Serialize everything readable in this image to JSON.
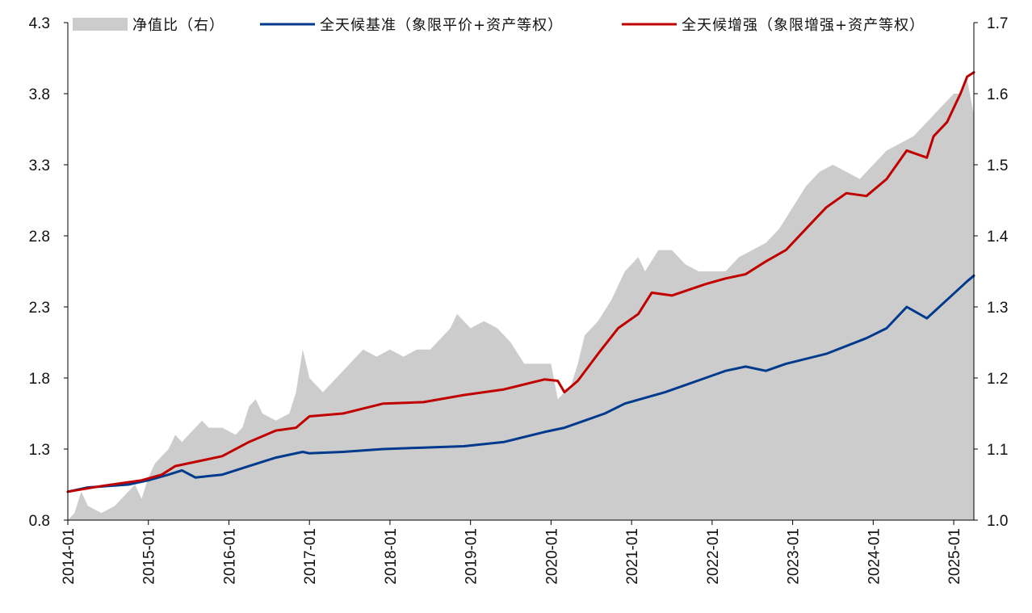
{
  "chart_data": {
    "type": "line",
    "x_axis": {
      "type": "date",
      "range": [
        "2014-01",
        "2025-04"
      ],
      "tick_labels": [
        "2014-01",
        "2015-01",
        "2016-01",
        "2017-01",
        "2018-01",
        "2019-01",
        "2020-01",
        "2021-01",
        "2022-01",
        "2023-01",
        "2024-01",
        "2025-01"
      ],
      "label_rotation": "vertical"
    },
    "y_axis_left": {
      "range": [
        0.8,
        4.3
      ],
      "ticks": [
        0.8,
        1.3,
        1.8,
        2.3,
        2.8,
        3.3,
        3.8,
        4.3
      ],
      "tick_labels": [
        "0.8",
        "1.3",
        "1.8",
        "2.3",
        "2.8",
        "3.3",
        "3.8",
        "4.3"
      ]
    },
    "y_axis_right": {
      "range": [
        1.0,
        1.7
      ],
      "ticks": [
        1.0,
        1.1,
        1.2,
        1.3,
        1.4,
        1.5,
        1.6,
        1.7
      ],
      "tick_labels": [
        "1.0",
        "1.1",
        "1.2",
        "1.3",
        "1.4",
        "1.5",
        "1.6",
        "1.7"
      ]
    },
    "grid": false,
    "legend_placement": "top",
    "series": [
      {
        "name": "净值比（右）",
        "type": "area",
        "axis": "right",
        "color": "#cccccc",
        "points": [
          [
            "2014-01",
            1.0
          ],
          [
            "2014-02",
            1.01
          ],
          [
            "2014-03",
            1.04
          ],
          [
            "2014-04",
            1.02
          ],
          [
            "2014-06",
            1.01
          ],
          [
            "2014-08",
            1.02
          ],
          [
            "2014-10",
            1.04
          ],
          [
            "2014-11",
            1.05
          ],
          [
            "2014-12",
            1.03
          ],
          [
            "2015-01",
            1.06
          ],
          [
            "2015-02",
            1.08
          ],
          [
            "2015-03",
            1.09
          ],
          [
            "2015-04",
            1.1
          ],
          [
            "2015-05",
            1.12
          ],
          [
            "2015-06",
            1.11
          ],
          [
            "2015-07",
            1.12
          ],
          [
            "2015-08",
            1.13
          ],
          [
            "2015-09",
            1.14
          ],
          [
            "2015-10",
            1.13
          ],
          [
            "2015-12",
            1.13
          ],
          [
            "2016-02",
            1.12
          ],
          [
            "2016-03",
            1.13
          ],
          [
            "2016-04",
            1.16
          ],
          [
            "2016-05",
            1.17
          ],
          [
            "2016-06",
            1.15
          ],
          [
            "2016-08",
            1.14
          ],
          [
            "2016-10",
            1.15
          ],
          [
            "2016-11",
            1.18
          ],
          [
            "2016-12",
            1.24
          ],
          [
            "2017-01",
            1.2
          ],
          [
            "2017-03",
            1.18
          ],
          [
            "2017-05",
            1.2
          ],
          [
            "2017-07",
            1.22
          ],
          [
            "2017-09",
            1.24
          ],
          [
            "2017-11",
            1.23
          ],
          [
            "2018-01",
            1.24
          ],
          [
            "2018-03",
            1.23
          ],
          [
            "2018-05",
            1.24
          ],
          [
            "2018-07",
            1.24
          ],
          [
            "2018-08",
            1.25
          ],
          [
            "2018-10",
            1.27
          ],
          [
            "2018-11",
            1.29
          ],
          [
            "2018-12",
            1.28
          ],
          [
            "2019-01",
            1.27
          ],
          [
            "2019-03",
            1.28
          ],
          [
            "2019-05",
            1.27
          ],
          [
            "2019-07",
            1.25
          ],
          [
            "2019-09",
            1.22
          ],
          [
            "2019-11",
            1.22
          ],
          [
            "2020-01",
            1.22
          ],
          [
            "2020-02",
            1.17
          ],
          [
            "2020-04",
            1.19
          ],
          [
            "2020-05",
            1.22
          ],
          [
            "2020-06",
            1.26
          ],
          [
            "2020-08",
            1.28
          ],
          [
            "2020-10",
            1.31
          ],
          [
            "2020-12",
            1.35
          ],
          [
            "2021-02",
            1.37
          ],
          [
            "2021-03",
            1.35
          ],
          [
            "2021-05",
            1.38
          ],
          [
            "2021-07",
            1.38
          ],
          [
            "2021-09",
            1.36
          ],
          [
            "2021-11",
            1.35
          ],
          [
            "2022-01",
            1.35
          ],
          [
            "2022-03",
            1.35
          ],
          [
            "2022-05",
            1.37
          ],
          [
            "2022-07",
            1.38
          ],
          [
            "2022-09",
            1.39
          ],
          [
            "2022-11",
            1.41
          ],
          [
            "2023-01",
            1.44
          ],
          [
            "2023-03",
            1.47
          ],
          [
            "2023-05",
            1.49
          ],
          [
            "2023-07",
            1.5
          ],
          [
            "2023-09",
            1.49
          ],
          [
            "2023-11",
            1.48
          ],
          [
            "2024-01",
            1.5
          ],
          [
            "2024-03",
            1.52
          ],
          [
            "2024-05",
            1.53
          ],
          [
            "2024-07",
            1.54
          ],
          [
            "2024-09",
            1.56
          ],
          [
            "2024-11",
            1.58
          ],
          [
            "2025-01",
            1.6
          ],
          [
            "2025-02",
            1.6
          ],
          [
            "2025-03",
            1.62
          ],
          [
            "2025-04",
            1.57
          ]
        ]
      },
      {
        "name": "全天候基准（象限平价+资产等权）",
        "type": "line",
        "axis": "left",
        "color": "#003a8c",
        "points": [
          [
            "2014-01",
            1.0
          ],
          [
            "2014-04",
            1.03
          ],
          [
            "2014-07",
            1.04
          ],
          [
            "2014-10",
            1.05
          ],
          [
            "2015-01",
            1.08
          ],
          [
            "2015-04",
            1.12
          ],
          [
            "2015-06",
            1.15
          ],
          [
            "2015-08",
            1.1
          ],
          [
            "2015-12",
            1.12
          ],
          [
            "2016-04",
            1.18
          ],
          [
            "2016-08",
            1.24
          ],
          [
            "2016-12",
            1.28
          ],
          [
            "2017-01",
            1.27
          ],
          [
            "2017-06",
            1.28
          ],
          [
            "2017-12",
            1.3
          ],
          [
            "2018-06",
            1.31
          ],
          [
            "2018-12",
            1.32
          ],
          [
            "2019-06",
            1.35
          ],
          [
            "2019-12",
            1.42
          ],
          [
            "2020-03",
            1.45
          ],
          [
            "2020-06",
            1.5
          ],
          [
            "2020-09",
            1.55
          ],
          [
            "2020-12",
            1.62
          ],
          [
            "2021-06",
            1.7
          ],
          [
            "2021-12",
            1.8
          ],
          [
            "2022-03",
            1.85
          ],
          [
            "2022-06",
            1.88
          ],
          [
            "2022-09",
            1.85
          ],
          [
            "2022-12",
            1.9
          ],
          [
            "2023-06",
            1.97
          ],
          [
            "2023-12",
            2.08
          ],
          [
            "2024-03",
            2.15
          ],
          [
            "2024-06",
            2.3
          ],
          [
            "2024-09",
            2.22
          ],
          [
            "2024-12",
            2.35
          ],
          [
            "2025-03",
            2.48
          ],
          [
            "2025-04",
            2.52
          ]
        ]
      },
      {
        "name": "全天候增强（象限增强+资产等权）",
        "type": "line",
        "axis": "left",
        "color": "#c00000",
        "points": [
          [
            "2014-01",
            1.0
          ],
          [
            "2014-06",
            1.04
          ],
          [
            "2014-12",
            1.08
          ],
          [
            "2015-03",
            1.12
          ],
          [
            "2015-05",
            1.18
          ],
          [
            "2015-09",
            1.22
          ],
          [
            "2015-12",
            1.25
          ],
          [
            "2016-04",
            1.35
          ],
          [
            "2016-08",
            1.43
          ],
          [
            "2016-11",
            1.45
          ],
          [
            "2017-01",
            1.53
          ],
          [
            "2017-06",
            1.55
          ],
          [
            "2017-12",
            1.62
          ],
          [
            "2018-06",
            1.63
          ],
          [
            "2018-12",
            1.68
          ],
          [
            "2019-06",
            1.72
          ],
          [
            "2019-12",
            1.79
          ],
          [
            "2020-02",
            1.78
          ],
          [
            "2020-03",
            1.7
          ],
          [
            "2020-05",
            1.78
          ],
          [
            "2020-08",
            1.97
          ],
          [
            "2020-11",
            2.15
          ],
          [
            "2021-02",
            2.25
          ],
          [
            "2021-04",
            2.4
          ],
          [
            "2021-07",
            2.38
          ],
          [
            "2021-12",
            2.46
          ],
          [
            "2022-03",
            2.5
          ],
          [
            "2022-06",
            2.53
          ],
          [
            "2022-09",
            2.62
          ],
          [
            "2022-12",
            2.7
          ],
          [
            "2023-03",
            2.85
          ],
          [
            "2023-06",
            3.0
          ],
          [
            "2023-09",
            3.1
          ],
          [
            "2023-12",
            3.08
          ],
          [
            "2024-03",
            3.2
          ],
          [
            "2024-06",
            3.4
          ],
          [
            "2024-09",
            3.35
          ],
          [
            "2024-10",
            3.5
          ],
          [
            "2024-12",
            3.6
          ],
          [
            "2025-02",
            3.8
          ],
          [
            "2025-03",
            3.92
          ],
          [
            "2025-04",
            3.95
          ]
        ]
      }
    ]
  },
  "legend": [
    {
      "label": "净值比（右）",
      "swatch": "area",
      "color": "#cccccc"
    },
    {
      "label": "全天候基准（象限平价+资产等权）",
      "swatch": "line",
      "color": "#003a8c"
    },
    {
      "label": "全天候增强（象限增强+资产等权）",
      "swatch": "line",
      "color": "#c00000"
    }
  ]
}
